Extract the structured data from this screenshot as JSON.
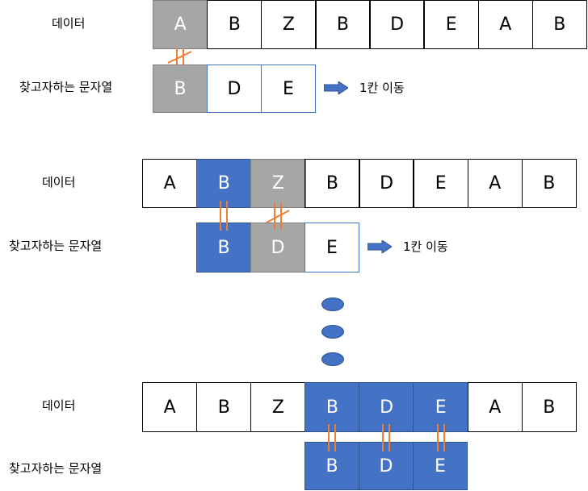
{
  "colors": {
    "gray": "#a6a6a6",
    "blue": "#4472c4",
    "match_mark": "#ed7d31"
  },
  "sections": [
    {
      "data_label": "데이터",
      "pattern_label": "찾고자하는 문자열",
      "data_cells": [
        {
          "text": "A",
          "style": "gray"
        },
        {
          "text": "B",
          "style": "plain"
        },
        {
          "text": "Z",
          "style": "plain"
        },
        {
          "text": "B",
          "style": "plain"
        },
        {
          "text": "D",
          "style": "plain"
        },
        {
          "text": "E",
          "style": "plain"
        },
        {
          "text": "A",
          "style": "plain"
        },
        {
          "text": "B",
          "style": "plain"
        }
      ],
      "pattern_cells": [
        {
          "text": "B",
          "style": "gray"
        },
        {
          "text": "D",
          "style": "outline"
        },
        {
          "text": "E",
          "style": "outline"
        }
      ],
      "shift_text": "1칸 이동"
    },
    {
      "data_label": "데이터",
      "pattern_label": "찾고자하는 문자열",
      "data_cells": [
        {
          "text": "A",
          "style": "plain"
        },
        {
          "text": "B",
          "style": "blue"
        },
        {
          "text": "Z",
          "style": "gray"
        },
        {
          "text": "B",
          "style": "plain"
        },
        {
          "text": "D",
          "style": "plain"
        },
        {
          "text": "E",
          "style": "plain"
        },
        {
          "text": "A",
          "style": "plain"
        },
        {
          "text": "B",
          "style": "plain"
        }
      ],
      "pattern_cells": [
        {
          "text": "B",
          "style": "blue"
        },
        {
          "text": "D",
          "style": "gray"
        },
        {
          "text": "E",
          "style": "outline"
        }
      ],
      "shift_text": "1칸 이동"
    },
    {
      "data_label": "데이터",
      "pattern_label": "찾고자하는 문자열",
      "data_cells": [
        {
          "text": "A",
          "style": "plain"
        },
        {
          "text": "B",
          "style": "plain"
        },
        {
          "text": "Z",
          "style": "plain"
        },
        {
          "text": "B",
          "style": "blue"
        },
        {
          "text": "D",
          "style": "blue"
        },
        {
          "text": "E",
          "style": "blue"
        },
        {
          "text": "A",
          "style": "plain"
        },
        {
          "text": "B",
          "style": "plain"
        }
      ],
      "pattern_cells": [
        {
          "text": "B",
          "style": "blue"
        },
        {
          "text": "D",
          "style": "blue"
        },
        {
          "text": "E",
          "style": "blue"
        }
      ]
    }
  ]
}
